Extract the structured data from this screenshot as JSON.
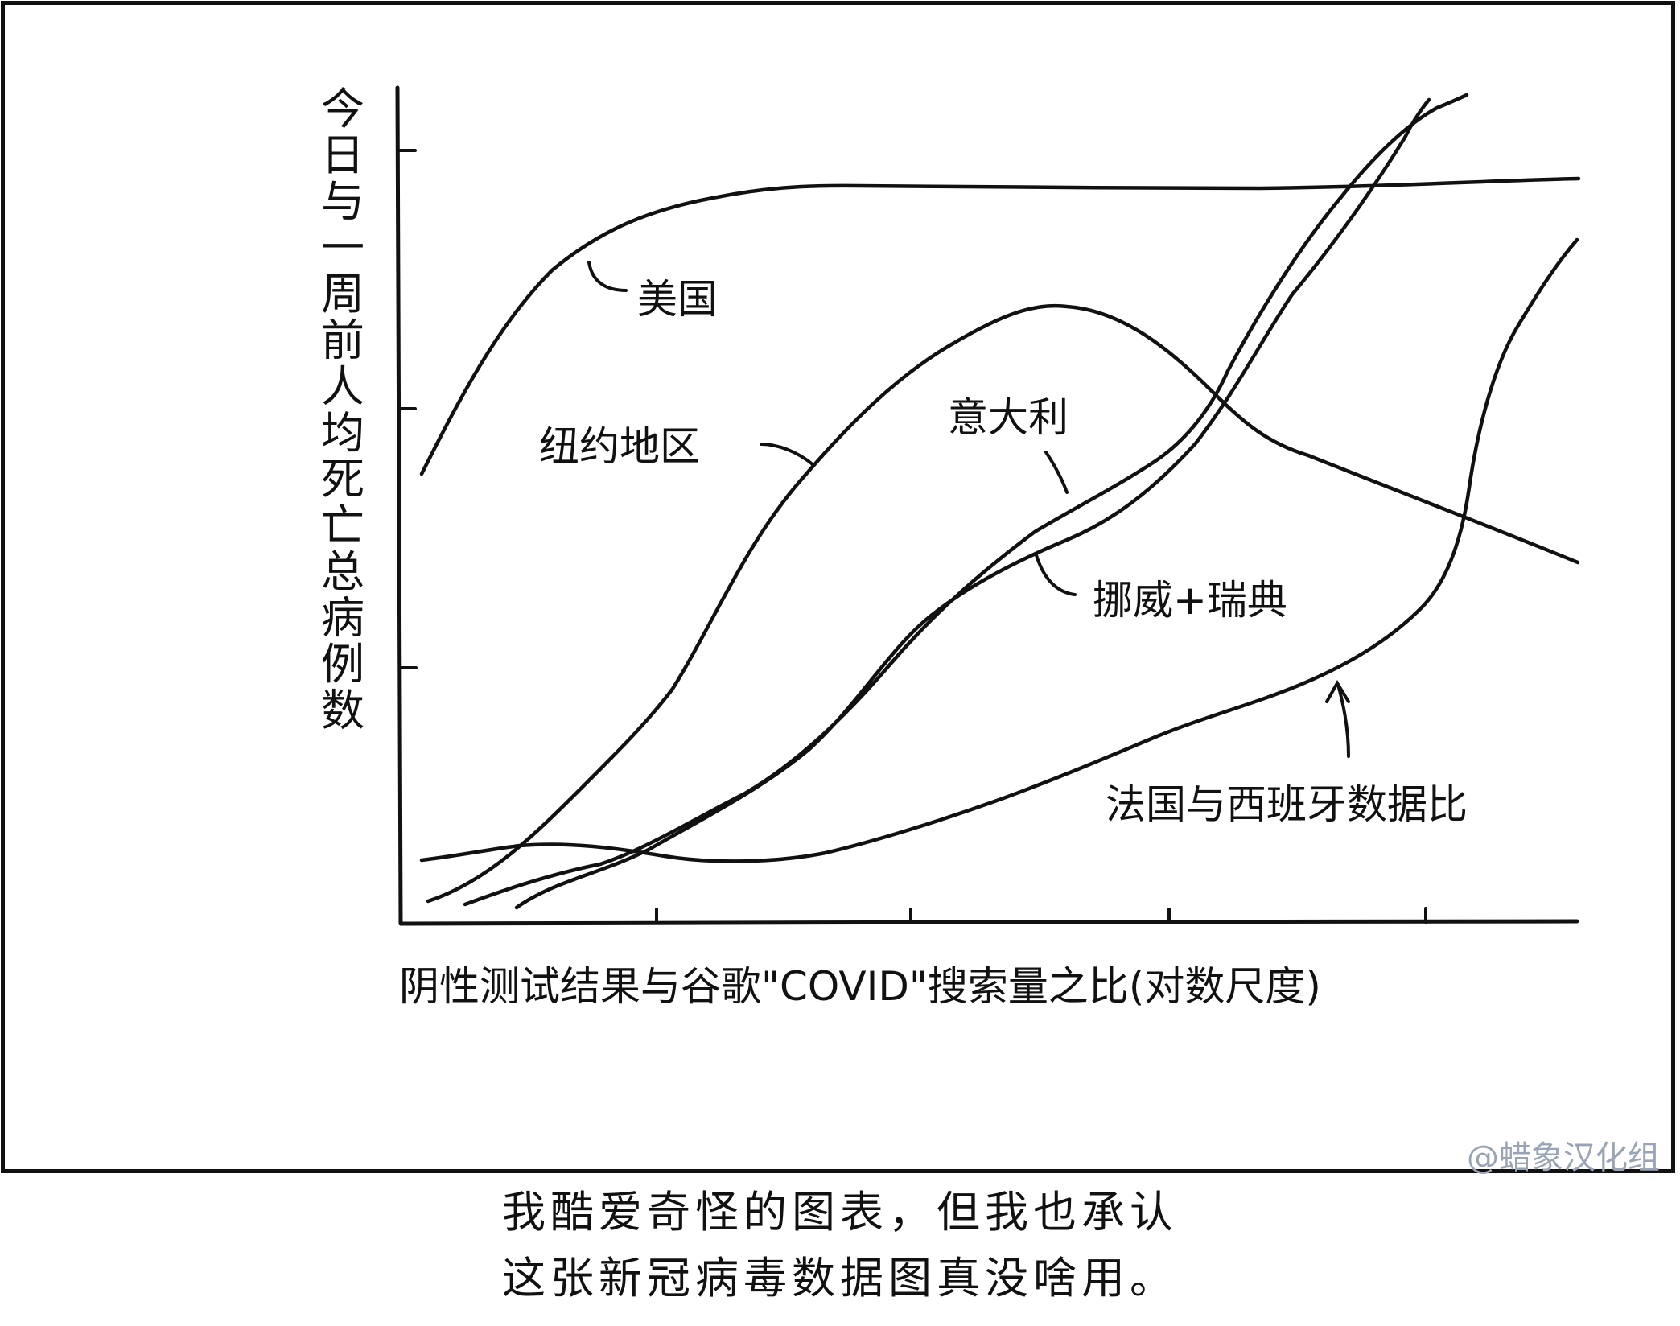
{
  "chart_data": {
    "type": "line",
    "ylabel": "今日与一周前人均死亡总病例数",
    "xlabel": "阴性测试结果与谷歌\"COVID\"搜索量之比(对数尺度)",
    "xscale": "log",
    "grid": false,
    "series": [
      {
        "name": "美国",
        "points": [
          [
            0.05,
            0.54
          ],
          [
            0.12,
            0.7
          ],
          [
            0.2,
            0.79
          ],
          [
            0.3,
            0.85
          ],
          [
            0.45,
            0.88
          ],
          [
            0.6,
            0.885
          ],
          [
            0.75,
            0.885
          ],
          [
            0.9,
            0.885
          ],
          [
            1.0,
            0.89
          ]
        ]
      },
      {
        "name": "纽约地区",
        "points": [
          [
            0.02,
            0.04
          ],
          [
            0.1,
            0.1
          ],
          [
            0.22,
            0.25
          ],
          [
            0.33,
            0.48
          ],
          [
            0.45,
            0.64
          ],
          [
            0.55,
            0.74
          ],
          [
            0.6,
            0.75
          ],
          [
            0.68,
            0.73
          ],
          [
            0.75,
            0.64
          ],
          [
            0.8,
            0.57
          ],
          [
            0.88,
            0.52
          ],
          [
            1.0,
            0.44
          ]
        ]
      },
      {
        "name": "意大利",
        "points": [
          [
            0.1,
            0.03
          ],
          [
            0.2,
            0.08
          ],
          [
            0.3,
            0.15
          ],
          [
            0.45,
            0.34
          ],
          [
            0.6,
            0.47
          ],
          [
            0.72,
            0.61
          ],
          [
            0.8,
            0.74
          ],
          [
            0.88,
            0.87
          ],
          [
            0.93,
            0.98
          ]
        ]
      },
      {
        "name": "挪威+瑞典",
        "points": [
          [
            0.05,
            0.03
          ],
          [
            0.2,
            0.09
          ],
          [
            0.32,
            0.19
          ],
          [
            0.45,
            0.37
          ],
          [
            0.58,
            0.47
          ],
          [
            0.7,
            0.57
          ],
          [
            0.8,
            0.76
          ],
          [
            0.9,
            0.93
          ],
          [
            0.96,
            0.99
          ]
        ]
      },
      {
        "name": "法国与西班牙数据比",
        "points": [
          [
            0.02,
            0.08
          ],
          [
            0.1,
            0.1
          ],
          [
            0.3,
            0.07
          ],
          [
            0.5,
            0.14
          ],
          [
            0.7,
            0.24
          ],
          [
            0.8,
            0.29
          ],
          [
            0.9,
            0.37
          ],
          [
            0.96,
            0.7
          ],
          [
            1.0,
            0.84
          ]
        ]
      }
    ]
  },
  "watermark": "@蜡象汉化组",
  "caption": {
    "line1": "我酷爱奇怪的图表，但我也承认",
    "line2": "这张新冠病毒数据图真没啥用。"
  }
}
